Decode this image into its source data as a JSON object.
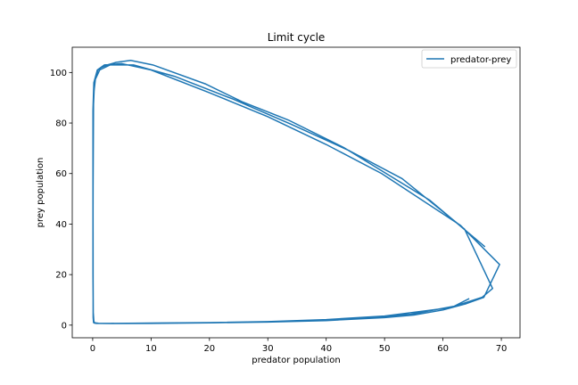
{
  "chart_data": {
    "type": "line",
    "title": "Limit cycle",
    "xlabel": "predator population",
    "ylabel": "prey population",
    "xlim": [
      -3.5,
      73.2
    ],
    "ylim": [
      -5,
      110
    ],
    "xticks": [
      0,
      10,
      20,
      30,
      40,
      50,
      60,
      70
    ],
    "yticks": [
      0,
      20,
      40,
      60,
      80,
      100
    ],
    "grid": false,
    "legend": {
      "position": "top-right"
    },
    "colors": {
      "series": "#1f77b4"
    },
    "series": [
      {
        "name": "predator-prey",
        "x": [
          67.2,
          57.7,
          43.0,
          33.5,
          25.6,
          19.4,
          10.3,
          6.5,
          4.0,
          2.5,
          1.5,
          0.9,
          0.5,
          0.25,
          0.1,
          0.05,
          0.1,
          0.2,
          0.3,
          0.6,
          1.2,
          3.0,
          10.0,
          20.0,
          30.0,
          40.0,
          50.0,
          55.0,
          60.0,
          64.0,
          67.0,
          69.7,
          63.0,
          49.5,
          40.0,
          30.0,
          20.0,
          10.0,
          5.0,
          2.0,
          0.8,
          0.2,
          0.05,
          0.05,
          0.1,
          0.2,
          0.4,
          1.0,
          2.0,
          4.0,
          8.0,
          16.0,
          25.0,
          35.0,
          45.0,
          54.5,
          62.0,
          66.7,
          68.5,
          63.7,
          53.0,
          44.0,
          34.0,
          24.0,
          14.0,
          7.0,
          3.0,
          1.2,
          0.4,
          0.15,
          0.06,
          0.08,
          0.15,
          0.3,
          0.6,
          1.5,
          3.0,
          6.0,
          12.0,
          20.0,
          30.0,
          40.0,
          50.0,
          57.5,
          61.5,
          64.5
        ],
        "y": [
          31.0,
          49.5,
          70.3,
          81.2,
          88.4,
          95.4,
          103.0,
          104.8,
          104.0,
          103.0,
          102.0,
          101.0,
          98.0,
          93.0,
          85.0,
          30.0,
          5.0,
          1.5,
          1.0,
          0.8,
          0.7,
          0.65,
          0.7,
          0.9,
          1.2,
          1.8,
          3.0,
          4.0,
          6.0,
          8.5,
          11.0,
          24.0,
          39.5,
          60.0,
          71.5,
          82.5,
          92.0,
          101.0,
          103.5,
          103.0,
          101.0,
          96.0,
          85.0,
          20.0,
          3.0,
          1.2,
          0.9,
          0.75,
          0.7,
          0.7,
          0.75,
          0.9,
          1.1,
          1.6,
          2.5,
          4.3,
          7.5,
          11.0,
          14.5,
          38.0,
          58.0,
          69.0,
          79.5,
          89.5,
          98.5,
          103.0,
          103.0,
          101.0,
          97.0,
          90.0,
          50.0,
          3.0,
          1.0,
          0.8,
          0.7,
          0.7,
          0.7,
          0.75,
          0.85,
          1.0,
          1.4,
          2.2,
          3.6,
          5.8,
          7.0,
          10.5
        ]
      }
    ]
  }
}
